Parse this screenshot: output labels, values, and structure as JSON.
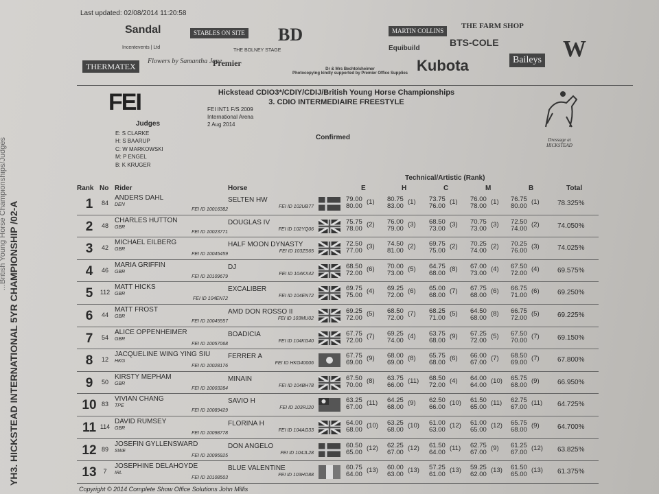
{
  "side_text": {
    "main": "YH3. HICKSTEAD INTERNATIONAL 5YR CHAMPIONSHIP /02-A",
    "faded": "...British Young Horse Championships/Judges"
  },
  "last_updated": "Last updated: 02/08/2014 11:20:58",
  "sponsors": [
    "Sandal",
    "Incentevents | Ltd",
    "STABLES ON SITE",
    "THE BOLNEY STAGE",
    "BD",
    "MARTIN COLLINS",
    "Equibuild",
    "THE FARM SHOP",
    "BTS-COLE",
    "THERMATEX",
    "Flowers by Samantha Jane",
    "Premier",
    "Kubota",
    "Baileys",
    "W"
  ],
  "sponsor_note": {
    "line1": "Dr & Mrs Bechtolsheimer",
    "line2": "Photocopying kindly supported by Premier Office Supplies"
  },
  "logo_text": "FEI",
  "event": {
    "title": "Hickstead CDIO3*/CDIY/CDIJ/British Young Horse Championships",
    "class": "3. CDIO INTERMEDIAIRE FREESTYLE",
    "test": "FEI INT1 F/S 2009",
    "arena": "International Arena",
    "date": "2 Aug 2014",
    "status": "Confirmed",
    "dressage_logo": "Dressage at HICKSTEAD"
  },
  "judges": {
    "heading": "Judges",
    "list": [
      "E: S CLARKE",
      "H: S BAARUP",
      "C: W MARKOWSKI",
      "M: P ENGEL",
      "B: K KRUGER"
    ]
  },
  "table": {
    "group_header": "Technical/Artistic (Rank)",
    "headers": {
      "rank": "Rank",
      "no": "No",
      "rider": "Rider",
      "horse": "Horse",
      "E": "E",
      "H": "H",
      "C": "C",
      "M": "M",
      "B": "B",
      "total": "Total"
    },
    "rows": [
      {
        "rank": "1",
        "no": "84",
        "rider": "ANDERS DAHL",
        "nat": "DEN",
        "rider_id": "FEI ID 10016382",
        "horse": "SELTEN HW",
        "horse_id": "FEI ID 102UB77",
        "scores": [
          [
            "79.00",
            "80.00",
            "(1)"
          ],
          [
            "80.75",
            "83.00",
            "(1)"
          ],
          [
            "73.75",
            "76.00",
            "(1)"
          ],
          [
            "76.00",
            "78.00",
            "(1)"
          ],
          [
            "76.75",
            "80.00",
            "(1)"
          ]
        ],
        "total": "78.325%"
      },
      {
        "rank": "2",
        "no": "48",
        "rider": "CHARLES HUTTON",
        "nat": "GBR",
        "rider_id": "FEI ID 10023771",
        "horse": "DOUGLAS IV",
        "horse_id": "FEI ID 102YQ06",
        "scores": [
          [
            "75.75",
            "78.00",
            "(2)"
          ],
          [
            "76.00",
            "79.00",
            "(3)"
          ],
          [
            "68.50",
            "73.00",
            "(3)"
          ],
          [
            "70.75",
            "73.00",
            "(3)"
          ],
          [
            "72.50",
            "74.00",
            "(2)"
          ]
        ],
        "total": "74.050%"
      },
      {
        "rank": "3",
        "no": "42",
        "rider": "MICHAEL EILBERG",
        "nat": "GBR",
        "rider_id": "FEI ID 10045459",
        "horse": "HALF MOON DYNASTY",
        "horse_id": "FEI ID 103ZS65",
        "scores": [
          [
            "72.50",
            "77.00",
            "(3)"
          ],
          [
            "74.50",
            "81.00",
            "(2)"
          ],
          [
            "69.75",
            "75.00",
            "(2)"
          ],
          [
            "70.25",
            "74.00",
            "(2)"
          ],
          [
            "70.25",
            "76.00",
            "(3)"
          ]
        ],
        "total": "74.025%"
      },
      {
        "rank": "4",
        "no": "46",
        "rider": "MARIA GRIFFIN",
        "nat": "GBR",
        "rider_id": "FEI ID 10109679",
        "horse": "DJ",
        "horse_id": "FEI ID 104KX42",
        "scores": [
          [
            "68.50",
            "72.00",
            "(6)"
          ],
          [
            "70.00",
            "73.00",
            "(5)"
          ],
          [
            "64.75",
            "68.00",
            "(8)"
          ],
          [
            "67.00",
            "73.00",
            "(4)"
          ],
          [
            "67.50",
            "72.00",
            "(4)"
          ]
        ],
        "total": "69.575%"
      },
      {
        "rank": "5",
        "no": "112",
        "rider": "MATT HICKS",
        "nat": "GBR",
        "rider_id": "FEI ID 104EN72",
        "horse": "EXCALIBER",
        "horse_id": "FEI ID 104EN72",
        "scores": [
          [
            "69.75",
            "75.00",
            "(4)"
          ],
          [
            "69.25",
            "72.00",
            "(6)"
          ],
          [
            "65.00",
            "68.00",
            "(7)"
          ],
          [
            "67.75",
            "68.00",
            "(6)"
          ],
          [
            "66.75",
            "71.00",
            "(6)"
          ]
        ],
        "total": "69.250%"
      },
      {
        "rank": "6",
        "no": "44",
        "rider": "MATT FROST",
        "nat": "GBR",
        "rider_id": "FEI ID 10045557",
        "horse": "AMD DON ROSSO II",
        "horse_id": "FEI ID 103MU02",
        "scores": [
          [
            "69.25",
            "72.00",
            "(5)"
          ],
          [
            "68.50",
            "72.00",
            "(7)"
          ],
          [
            "68.25",
            "71.00",
            "(5)"
          ],
          [
            "64.50",
            "68.00",
            "(8)"
          ],
          [
            "66.75",
            "72.00",
            "(5)"
          ]
        ],
        "total": "69.225%"
      },
      {
        "rank": "7",
        "no": "54",
        "rider": "ALICE OPPENHEIMER",
        "nat": "GBR",
        "rider_id": "FEI ID 10057068",
        "horse": "BOADICIA",
        "horse_id": "FEI ID 104KG40",
        "scores": [
          [
            "67.75",
            "72.00",
            "(7)"
          ],
          [
            "69.25",
            "74.00",
            "(4)"
          ],
          [
            "63.75",
            "68.00",
            "(9)"
          ],
          [
            "67.25",
            "72.00",
            "(5)"
          ],
          [
            "67.50",
            "70.00",
            "(7)"
          ]
        ],
        "total": "69.150%"
      },
      {
        "rank": "8",
        "no": "12",
        "rider": "JACQUELINE WING YING SIU",
        "nat": "HKG",
        "rider_id": "FEI ID 10028176",
        "horse": "FERRER A",
        "horse_id": "FEI ID HKG40006",
        "scores": [
          [
            "67.75",
            "69.00",
            "(9)"
          ],
          [
            "68.00",
            "69.00",
            "(8)"
          ],
          [
            "65.75",
            "68.00",
            "(6)"
          ],
          [
            "66.00",
            "67.00",
            "(7)"
          ],
          [
            "68.50",
            "69.00",
            "(7)"
          ]
        ],
        "total": "67.800%"
      },
      {
        "rank": "9",
        "no": "50",
        "rider": "KIRSTY MEPHAM",
        "nat": "GBR",
        "rider_id": "FEI ID 10003284",
        "horse": "MINAIN",
        "horse_id": "FEI ID 104BH78",
        "scores": [
          [
            "67.50",
            "70.00",
            "(8)"
          ],
          [
            "63.75",
            "66.00",
            "(11)"
          ],
          [
            "68.50",
            "72.00",
            "(4)"
          ],
          [
            "64.00",
            "64.00",
            "(10)"
          ],
          [
            "65.75",
            "68.00",
            "(9)"
          ]
        ],
        "total": "66.950%"
      },
      {
        "rank": "10",
        "no": "83",
        "rider": "VIVIAN CHANG",
        "nat": "TPE",
        "rider_id": "FEI ID 10089429",
        "horse": "SAVIO H",
        "horse_id": "FEI ID 103RJ20",
        "scores": [
          [
            "63.25",
            "67.00",
            "(11)"
          ],
          [
            "64.25",
            "68.00",
            "(9)"
          ],
          [
            "62.50",
            "66.00",
            "(10)"
          ],
          [
            "61.50",
            "65.00",
            "(11)"
          ],
          [
            "62.75",
            "67.00",
            "(11)"
          ]
        ],
        "total": "64.725%"
      },
      {
        "rank": "11",
        "no": "114",
        "rider": "DAVID RUMSEY",
        "nat": "GBR",
        "rider_id": "FEI ID 10098778",
        "horse": "FLORINA H",
        "horse_id": "FEI ID 104AG33",
        "scores": [
          [
            "64.00",
            "68.00",
            "(10)"
          ],
          [
            "63.25",
            "68.00",
            "(10)"
          ],
          [
            "61.00",
            "63.00",
            "(12)"
          ],
          [
            "61.00",
            "65.00",
            "(12)"
          ],
          [
            "65.75",
            "68.00",
            "(9)"
          ]
        ],
        "total": "64.700%"
      },
      {
        "rank": "12",
        "no": "89",
        "rider": "JOSEFIN GYLLENSWARD",
        "nat": "SWE",
        "rider_id": "FEI ID 10095925",
        "horse": "DON ANGELO",
        "horse_id": "FEI ID 104JL28",
        "scores": [
          [
            "60.50",
            "65.00",
            "(12)"
          ],
          [
            "62.25",
            "67.00",
            "(12)"
          ],
          [
            "61.50",
            "64.00",
            "(11)"
          ],
          [
            "62.75",
            "67.00",
            "(9)"
          ],
          [
            "61.25",
            "67.00",
            "(12)"
          ]
        ],
        "total": "63.825%"
      },
      {
        "rank": "13",
        "no": "7",
        "rider": "JOSEPHINE DELAHOYDE",
        "nat": "IRL",
        "rider_id": "FEI ID 10108503",
        "horse": "BLUE VALENTINE",
        "horse_id": "FEI ID 103HO88",
        "scores": [
          [
            "60.75",
            "64.00",
            "(13)"
          ],
          [
            "60.00",
            "63.00",
            "(13)"
          ],
          [
            "57.25",
            "61.00",
            "(13)"
          ],
          [
            "59.25",
            "62.00",
            "(13)"
          ],
          [
            "61.50",
            "65.00",
            "(13)"
          ]
        ],
        "total": "61.375%"
      }
    ]
  },
  "copyright": "Copyright © 2014 Complete Show Office Solutions  John Millis"
}
